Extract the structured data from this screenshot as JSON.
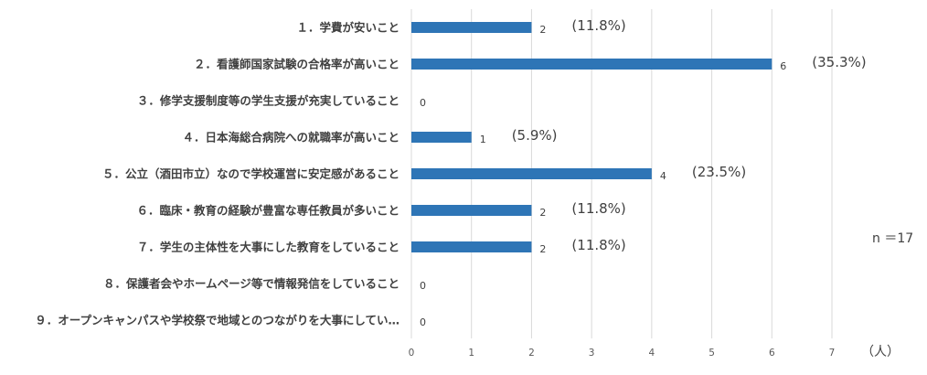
{
  "chart_data": {
    "type": "bar",
    "orientation": "horizontal",
    "categories": [
      "１．学費が安いこと",
      "２．看護師国家試験の合格率が高いこと",
      "３．修学支援制度等の学生支援が充実していること",
      "４．日本海総合病院への就職率が高いこと",
      "５．公立（酒田市立）なので学校運営に安定感があること",
      "６．臨床・教育の経験が豊富な専任教員が多いこと",
      "７．学生の主体性を大事にした教育をしていること",
      "８．保護者会やホームページ等で情報発信をしていること",
      "９．オープンキャンパスや学校祭で地域とのつながりを大事にしてい…"
    ],
    "values": [
      2,
      6,
      0,
      1,
      4,
      2,
      2,
      0,
      0
    ],
    "value_labels": [
      "2",
      "6",
      "0",
      "1",
      "4",
      "2",
      "2",
      "0",
      "0"
    ],
    "percent_labels": [
      "(11.8%)",
      "(35.3%)",
      "",
      "(5.9%)",
      "(23.5%)",
      "(11.8%)",
      "(11.8%)",
      "",
      ""
    ],
    "x_ticks": [
      "0",
      "1",
      "2",
      "3",
      "4",
      "5",
      "6",
      "7"
    ],
    "xlim": [
      0,
      7
    ],
    "x_unit": "（人）",
    "annotation": "n ＝17",
    "grid": true,
    "bar_color": "#2e75b6",
    "grid_color": "#d9d9d9"
  }
}
